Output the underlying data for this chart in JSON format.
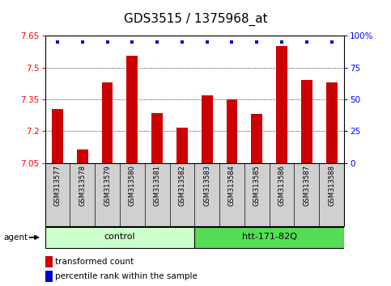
{
  "title": "GDS3515 / 1375968_at",
  "samples": [
    "GSM313577",
    "GSM313578",
    "GSM313579",
    "GSM313580",
    "GSM313581",
    "GSM313582",
    "GSM313583",
    "GSM313584",
    "GSM313585",
    "GSM313586",
    "GSM313587",
    "GSM313588"
  ],
  "bar_values": [
    7.305,
    7.115,
    7.43,
    7.555,
    7.285,
    7.215,
    7.37,
    7.35,
    7.28,
    7.6,
    7.44,
    7.43
  ],
  "percentile_values": [
    95,
    95,
    95,
    95,
    95,
    95,
    95,
    95,
    95,
    95,
    95,
    95
  ],
  "bar_color": "#cc0000",
  "dot_color": "#0000cc",
  "ylim_left": [
    7.05,
    7.65
  ],
  "ylim_right": [
    0,
    100
  ],
  "yticks_left": [
    7.05,
    7.2,
    7.35,
    7.5,
    7.65
  ],
  "ytick_labels_left": [
    "7.05",
    "7.2",
    "7.35",
    "7.5",
    "7.65"
  ],
  "yticks_right": [
    0,
    25,
    50,
    75,
    100
  ],
  "ytick_labels_right": [
    "0",
    "25",
    "50",
    "75",
    "100%"
  ],
  "hgrid_values": [
    7.2,
    7.35,
    7.5
  ],
  "groups": [
    {
      "label": "control",
      "start": 0,
      "end": 5,
      "color": "#ccffcc"
    },
    {
      "label": "htt-171-82Q",
      "start": 6,
      "end": 11,
      "color": "#55dd55"
    }
  ],
  "agent_label": "agent",
  "legend_bar_label": "transformed count",
  "legend_dot_label": "percentile rank within the sample",
  "title_fontsize": 11,
  "tick_fontsize": 7.5,
  "sample_fontsize": 6,
  "group_fontsize": 8,
  "bar_width": 0.45
}
